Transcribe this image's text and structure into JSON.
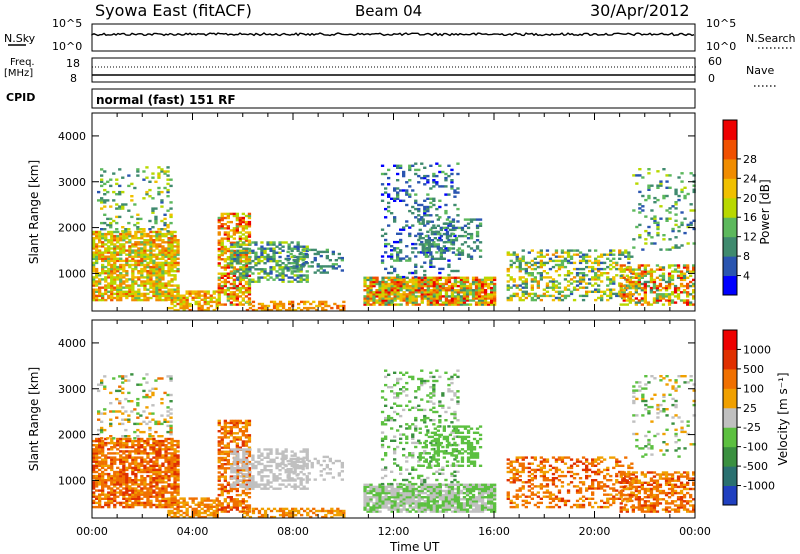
{
  "header": {
    "station": "Syowa East (fitACF)",
    "beam": "Beam 04",
    "date": "30/Apr/2012"
  },
  "param_panels": {
    "nsky_label": "N.Sky",
    "nsky_ticks": [
      "10^5",
      "10^0"
    ],
    "nsearch_label": "N.Search",
    "nsearch_ticks": [
      "10^5",
      "10^0"
    ],
    "freq_label": "Freq.",
    "freq_unit": "[MHz]",
    "freq_ticks": [
      "18",
      "8"
    ],
    "nave_label": "Nave",
    "nave_ticks": [
      "60",
      "0"
    ],
    "cpid_label": "CPID",
    "cpid_value": "normal (fast) 151 RF"
  },
  "chart_data": [
    {
      "type": "heatmap",
      "name": "power",
      "ylabel": "Slant Range [km]",
      "xlabel": "",
      "ylim": [
        180,
        4500
      ],
      "y_ticks": [
        "1000",
        "2000",
        "3000",
        "4000"
      ],
      "y_tick_values": [
        1000,
        2000,
        3000,
        4000
      ],
      "colorbar": {
        "label": "Power [dB]",
        "ticks": [
          "4",
          "8",
          "12",
          "16",
          "20",
          "24",
          "28"
        ],
        "colors": [
          "#0000ff",
          "#2a55b0",
          "#3f8a6e",
          "#5cb85c",
          "#b8d800",
          "#f0c000",
          "#f08c00",
          "#f05000",
          "#ee0000"
        ]
      }
    },
    {
      "type": "heatmap",
      "name": "velocity",
      "ylabel": "Slant Range [km]",
      "xlabel": "Time UT",
      "ylim": [
        180,
        4500
      ],
      "y_ticks": [
        "1000",
        "2000",
        "3000",
        "4000"
      ],
      "y_tick_values": [
        1000,
        2000,
        3000,
        4000
      ],
      "x_ticks": [
        "00:00",
        "04:00",
        "08:00",
        "12:00",
        "16:00",
        "20:00",
        "00:00"
      ],
      "x_tick_hours": [
        0,
        4,
        8,
        12,
        16,
        20,
        24
      ],
      "colorbar": {
        "label": "Velocity [m s⁻¹]",
        "ticks": [
          "1000",
          "500",
          "100",
          "25",
          "-25",
          "-100",
          "-500",
          "-1000"
        ],
        "colors": [
          "#2040c0",
          "#2a7070",
          "#3a9040",
          "#5cc040",
          "#c0c0c0",
          "#f0a000",
          "#f07000",
          "#e03000",
          "#ee0000"
        ]
      }
    }
  ]
}
